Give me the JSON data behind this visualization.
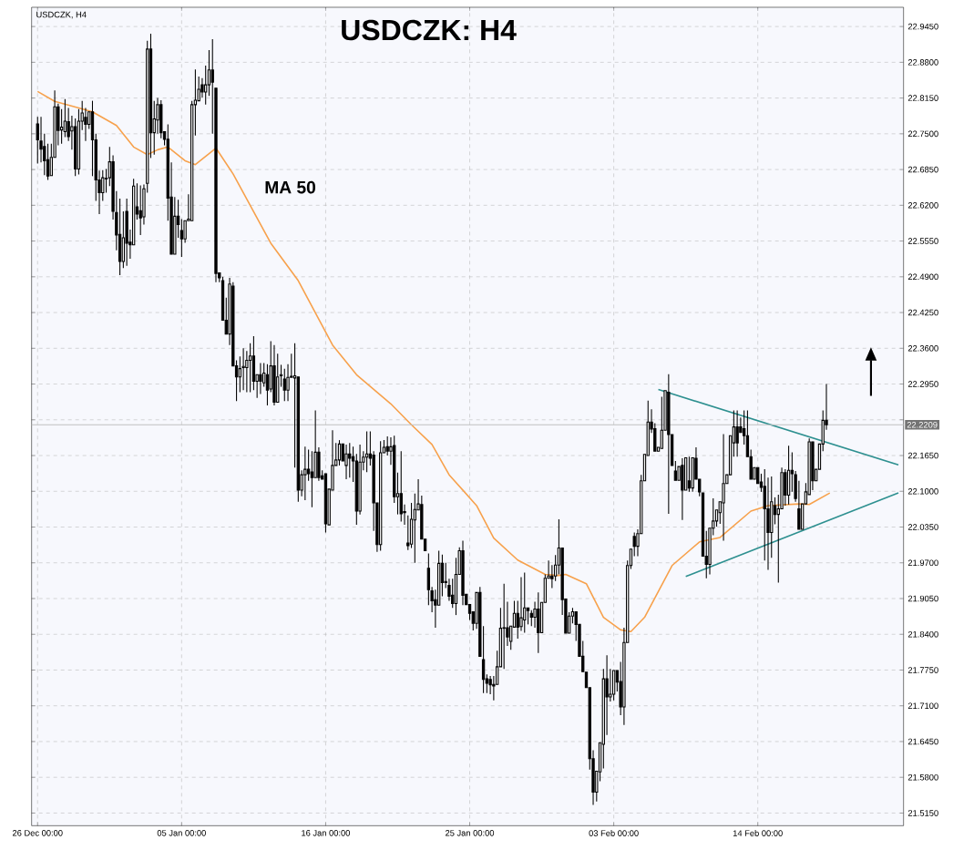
{
  "chart_data": {
    "type": "candlestick",
    "title": "USDCZK: H4",
    "subtitle": "USDCZK, H4",
    "color": "#000000",
    "ylim": [
      21.492,
      22.98
    ],
    "categories": [
      "26 Dec 00:00",
      null,
      null,
      null,
      null,
      null,
      null,
      null,
      null,
      null,
      null,
      null,
      null,
      null,
      null,
      null,
      null,
      null,
      null,
      null,
      null,
      null,
      null,
      null,
      null,
      null,
      null,
      null,
      null,
      null,
      null,
      null,
      null,
      null,
      null,
      null,
      null,
      null,
      null,
      null,
      null,
      null,
      "05 Jan 00:00",
      null,
      null,
      null,
      null,
      null,
      null,
      null,
      null,
      null,
      null,
      null,
      null,
      null,
      null,
      null,
      null,
      null,
      null,
      null,
      null,
      null,
      null,
      null,
      null,
      null,
      null,
      null,
      null,
      null,
      null,
      null,
      null,
      null,
      null,
      null,
      null,
      null,
      null,
      null,
      null,
      null,
      "16 Jan 00:00",
      null,
      null,
      null,
      null,
      null,
      null,
      null,
      null,
      null,
      null,
      null,
      null,
      null,
      null,
      null,
      null,
      null,
      null,
      null,
      null,
      null,
      null,
      null,
      null,
      null,
      null,
      null,
      null,
      null,
      null,
      null,
      null,
      null,
      null,
      null,
      null,
      null,
      null,
      null,
      null,
      null,
      "25 Jan 00:00",
      null,
      null,
      null,
      null,
      null,
      null,
      null,
      null,
      null,
      null,
      null,
      null,
      null,
      null,
      null,
      null,
      null,
      null,
      null,
      null,
      null,
      null,
      null,
      null,
      null,
      null,
      null,
      null,
      null,
      null,
      null,
      null,
      null,
      null,
      null,
      null,
      null,
      null,
      null,
      null,
      null,
      "03 Feb 00:00",
      null,
      null,
      null,
      null,
      null,
      null,
      null,
      null,
      null,
      null,
      null,
      null,
      null,
      null,
      null,
      null,
      null,
      null,
      null,
      null,
      null,
      null,
      null,
      null,
      null,
      null,
      null,
      null,
      null,
      null,
      null,
      null,
      null,
      null,
      null,
      null,
      null,
      null,
      null,
      null,
      null,
      "14 Feb 00:00",
      null,
      null,
      null,
      null,
      null,
      null,
      null,
      null,
      null,
      null,
      null,
      null,
      null,
      null,
      null,
      null,
      null,
      null,
      null,
      null,
      null,
      null,
      null,
      null,
      null,
      null,
      null,
      null,
      null,
      null,
      null,
      null,
      null,
      null,
      null,
      null,
      null,
      null,
      null,
      null,
      null,
      null
    ],
    "yticks": [
      {
        "value": 22.945,
        "label": "22.9450"
      },
      {
        "value": 22.88,
        "label": "22.8800"
      },
      {
        "value": 22.815,
        "label": "22.8150"
      },
      {
        "value": 22.75,
        "label": "22.7500"
      },
      {
        "value": 22.685,
        "label": "22.6850"
      },
      {
        "value": 22.62,
        "label": "22.6200"
      },
      {
        "value": 22.555,
        "label": "22.5550"
      },
      {
        "value": 22.49,
        "label": "22.4900"
      },
      {
        "value": 22.425,
        "label": "22.4250"
      },
      {
        "value": 22.36,
        "label": "22.3600"
      },
      {
        "value": 22.295,
        "label": "22.2950"
      },
      {
        "value": 22.23,
        "label": null
      },
      {
        "value": 22.165,
        "label": "22.1650"
      },
      {
        "value": 22.1,
        "label": "22.1000"
      },
      {
        "value": 22.035,
        "label": "22.0350"
      },
      {
        "value": 21.97,
        "label": "21.9700"
      },
      {
        "value": 21.905,
        "label": "21.9050"
      },
      {
        "value": 21.84,
        "label": "21.8400"
      },
      {
        "value": 21.775,
        "label": "21.7750"
      },
      {
        "value": 21.71,
        "label": "21.7100"
      },
      {
        "value": 21.645,
        "label": "21.6450"
      },
      {
        "value": 21.58,
        "label": "21.5800"
      },
      {
        "value": 21.515,
        "label": "21.5150"
      }
    ],
    "grid": true,
    "ref_lines": [
      {
        "axis": "y",
        "value": 22.2209,
        "label": "22.2209",
        "color": "#c0c0c0"
      }
    ],
    "ohlc": [
      [
        22.768,
        22.781,
        22.696,
        22.739
      ],
      [
        22.737,
        22.781,
        22.698,
        22.722
      ],
      [
        22.727,
        22.75,
        22.675,
        22.701
      ],
      [
        22.703,
        22.732,
        22.666,
        22.673
      ],
      [
        22.674,
        22.732,
        22.67,
        22.707
      ],
      [
        22.707,
        22.829,
        22.706,
        22.799
      ],
      [
        22.799,
        22.805,
        22.729,
        22.756
      ],
      [
        22.757,
        22.795,
        22.732,
        22.762
      ],
      [
        22.754,
        22.813,
        22.744,
        22.773
      ],
      [
        22.772,
        22.797,
        22.737,
        22.745
      ],
      [
        22.755,
        22.783,
        22.721,
        22.763
      ],
      [
        22.763,
        22.778,
        22.673,
        22.686
      ],
      [
        22.686,
        22.795,
        22.676,
        22.773
      ],
      [
        22.773,
        22.81,
        22.757,
        22.788
      ],
      [
        22.78,
        22.797,
        22.737,
        22.767
      ],
      [
        22.767,
        22.795,
        22.759,
        22.79
      ],
      [
        22.79,
        22.81,
        22.673,
        22.739
      ],
      [
        22.739,
        22.75,
        22.628,
        22.666
      ],
      [
        22.666,
        22.683,
        22.604,
        22.643
      ],
      [
        22.643,
        22.684,
        22.628,
        22.67
      ],
      [
        22.669,
        22.686,
        22.643,
        22.668
      ],
      [
        22.67,
        22.726,
        22.655,
        22.699
      ],
      [
        22.699,
        22.711,
        22.594,
        22.609
      ],
      [
        22.607,
        22.646,
        22.538,
        22.566
      ],
      [
        22.567,
        22.632,
        22.493,
        22.518
      ],
      [
        22.518,
        22.609,
        22.506,
        22.561
      ],
      [
        22.609,
        22.632,
        22.51,
        22.551
      ],
      [
        22.553,
        22.576,
        22.523,
        22.548
      ],
      [
        22.548,
        22.668,
        22.547,
        22.655
      ],
      [
        22.617,
        22.66,
        22.594,
        22.604
      ],
      [
        22.61,
        22.656,
        22.566,
        22.597
      ],
      [
        22.599,
        22.658,
        22.585,
        22.65
      ],
      [
        22.66,
        22.919,
        22.643,
        22.904
      ],
      [
        22.904,
        22.932,
        22.706,
        22.752
      ],
      [
        22.752,
        22.81,
        22.712,
        22.777
      ],
      [
        22.775,
        22.815,
        22.75,
        22.803
      ],
      [
        22.803,
        22.811,
        22.742,
        22.752
      ],
      [
        22.754,
        22.757,
        22.729,
        22.74
      ],
      [
        22.74,
        22.767,
        22.592,
        22.633
      ],
      [
        22.635,
        22.698,
        22.528,
        22.531
      ],
      [
        22.531,
        22.635,
        22.531,
        22.6
      ],
      [
        22.6,
        22.63,
        22.561,
        22.585
      ],
      [
        22.574,
        22.595,
        22.526,
        22.559
      ],
      [
        22.559,
        22.594,
        22.552,
        22.592
      ],
      [
        22.592,
        22.64,
        22.588,
        22.595
      ],
      [
        22.592,
        22.81,
        22.589,
        22.803
      ],
      [
        22.803,
        22.867,
        22.747,
        22.811
      ],
      [
        22.81,
        22.854,
        22.806,
        22.831
      ],
      [
        22.839,
        22.851,
        22.816,
        22.826
      ],
      [
        22.826,
        22.874,
        22.803,
        22.839
      ],
      [
        22.839,
        22.902,
        22.819,
        22.866
      ],
      [
        22.866,
        22.922,
        22.75,
        22.844
      ],
      [
        22.833,
        22.833,
        22.48,
        22.496
      ],
      [
        22.497,
        22.497,
        22.48,
        22.488
      ],
      [
        22.483,
        22.49,
        22.411,
        22.411
      ],
      [
        22.411,
        22.452,
        22.383,
        22.386
      ],
      [
        22.386,
        22.488,
        22.366,
        22.477
      ],
      [
        22.473,
        22.48,
        22.328,
        22.328
      ],
      [
        22.328,
        22.338,
        22.264,
        22.308
      ],
      [
        22.308,
        22.345,
        22.28,
        22.323
      ],
      [
        22.325,
        22.36,
        22.284,
        22.327
      ],
      [
        22.325,
        22.355,
        22.28,
        22.338
      ],
      [
        22.338,
        22.369,
        22.28,
        22.346
      ],
      [
        22.346,
        22.382,
        22.284,
        22.3
      ],
      [
        22.3,
        22.317,
        22.27,
        22.312
      ],
      [
        22.312,
        22.333,
        22.277,
        22.3
      ],
      [
        22.297,
        22.333,
        22.29,
        22.315
      ],
      [
        22.312,
        22.331,
        22.256,
        22.284
      ],
      [
        22.286,
        22.373,
        22.28,
        22.328
      ],
      [
        22.328,
        22.366,
        22.256,
        22.262
      ],
      [
        22.262,
        22.35,
        22.259,
        22.308
      ],
      [
        22.31,
        22.33,
        22.29,
        22.312
      ],
      [
        22.304,
        22.323,
        22.264,
        22.284
      ],
      [
        22.284,
        22.331,
        22.264,
        22.307
      ],
      [
        22.307,
        22.35,
        22.304,
        22.309
      ],
      [
        22.306,
        22.369,
        22.143,
        22.31
      ],
      [
        22.308,
        22.312,
        22.081,
        22.102
      ],
      [
        22.102,
        22.138,
        22.091,
        22.13
      ],
      [
        22.13,
        22.181,
        22.084,
        22.14
      ],
      [
        22.14,
        22.176,
        22.119,
        22.132
      ],
      [
        22.135,
        22.173,
        22.071,
        22.125
      ],
      [
        22.125,
        22.247,
        22.125,
        22.171
      ],
      [
        22.171,
        22.18,
        22.119,
        22.125
      ],
      [
        22.128,
        22.138,
        22.119,
        22.122
      ],
      [
        22.132,
        22.132,
        22.025,
        22.041
      ],
      [
        22.039,
        22.106,
        22.036,
        22.104
      ],
      [
        22.102,
        22.211,
        22.097,
        22.147
      ],
      [
        22.147,
        22.188,
        22.143,
        22.157
      ],
      [
        22.157,
        22.193,
        22.147,
        22.186
      ],
      [
        22.186,
        22.188,
        22.152,
        22.155
      ],
      [
        22.147,
        22.185,
        22.122,
        22.168
      ],
      [
        22.168,
        22.188,
        22.125,
        22.16
      ],
      [
        22.163,
        22.181,
        22.117,
        22.155
      ],
      [
        22.155,
        22.168,
        22.039,
        22.064
      ],
      [
        22.064,
        22.185,
        22.058,
        22.153
      ],
      [
        22.153,
        22.173,
        22.138,
        22.162
      ],
      [
        22.162,
        22.209,
        22.135,
        22.168
      ],
      [
        22.168,
        22.209,
        22.147,
        22.16
      ],
      [
        22.166,
        22.173,
        22.028,
        22.079
      ],
      [
        22.079,
        22.079,
        21.99,
        22.003
      ],
      [
        22.003,
        22.191,
        21.992,
        22.17
      ],
      [
        22.17,
        22.193,
        22.168,
        22.18
      ],
      [
        22.181,
        22.2,
        22.165,
        22.173
      ],
      [
        22.173,
        22.198,
        22.148,
        22.181
      ],
      [
        22.183,
        22.201,
        22.079,
        22.09
      ],
      [
        22.09,
        22.134,
        22.058,
        22.096
      ],
      [
        22.096,
        22.173,
        22.045,
        22.059
      ],
      [
        22.063,
        22.076,
        22.039,
        22.061
      ],
      [
        22.006,
        22.056,
        21.993,
        22.001
      ],
      [
        22.004,
        22.079,
        21.997,
        22.049
      ],
      [
        22.048,
        22.096,
        21.97,
        22.067
      ],
      [
        22.066,
        22.122,
        22.063,
        22.077
      ],
      [
        22.076,
        22.092,
        22.008,
        22.013
      ],
      [
        22.013,
        22.015,
        21.989,
        21.992
      ],
      [
        21.96,
        21.987,
        21.893,
        21.921
      ],
      [
        21.919,
        21.926,
        21.88,
        21.901
      ],
      [
        21.903,
        21.921,
        21.852,
        21.893
      ],
      [
        21.893,
        21.992,
        21.893,
        21.969
      ],
      [
        21.969,
        21.985,
        21.909,
        21.934
      ],
      [
        21.936,
        21.97,
        21.924,
        21.934
      ],
      [
        21.929,
        21.941,
        21.901,
        21.909
      ],
      [
        21.911,
        21.941,
        21.888,
        21.896
      ],
      [
        21.896,
        21.979,
        21.875,
        21.949
      ],
      [
        21.949,
        21.998,
        21.946,
        21.992
      ],
      [
        21.992,
        22.01,
        21.893,
        21.911
      ],
      [
        21.913,
        21.916,
        21.891,
        21.894
      ],
      [
        21.894,
        21.896,
        21.866,
        21.878
      ],
      [
        21.881,
        21.884,
        21.847,
        21.86
      ],
      [
        21.86,
        21.921,
        21.85,
        21.916
      ],
      [
        21.916,
        21.926,
        21.798,
        21.8
      ],
      [
        21.794,
        21.855,
        21.733,
        21.758
      ],
      [
        21.759,
        21.767,
        21.733,
        21.751
      ],
      [
        21.758,
        21.764,
        21.731,
        21.748
      ],
      [
        21.749,
        21.764,
        21.72,
        21.746
      ],
      [
        21.749,
        21.81,
        21.747,
        21.781
      ],
      [
        21.781,
        21.888,
        21.777,
        21.851
      ],
      [
        21.851,
        21.932,
        21.777,
        21.852
      ],
      [
        21.852,
        21.899,
        21.819,
        21.835
      ],
      [
        21.827,
        21.86,
        21.812,
        21.855
      ],
      [
        21.853,
        21.901,
        21.852,
        21.878
      ],
      [
        21.878,
        21.901,
        21.832,
        21.853
      ],
      [
        21.854,
        21.944,
        21.846,
        21.87
      ],
      [
        21.866,
        21.952,
        21.843,
        21.888
      ],
      [
        21.888,
        21.893,
        21.858,
        21.883
      ],
      [
        21.878,
        21.884,
        21.855,
        21.871
      ],
      [
        21.871,
        21.899,
        21.852,
        21.886
      ],
      [
        21.886,
        21.916,
        21.806,
        21.843
      ],
      [
        21.843,
        21.901,
        21.84,
        21.898
      ],
      [
        21.898,
        21.949,
        21.896,
        21.942
      ],
      [
        21.942,
        21.974,
        21.942,
        21.946
      ],
      [
        21.946,
        21.966,
        21.924,
        21.941
      ],
      [
        21.946,
        21.984,
        21.937,
        21.966
      ],
      [
        21.966,
        22.049,
        21.949,
        21.997
      ],
      [
        21.997,
        21.997,
        21.875,
        21.903
      ],
      [
        21.904,
        21.904,
        21.838,
        21.842
      ],
      [
        21.842,
        21.88,
        21.838,
        21.873
      ],
      [
        21.873,
        21.888,
        21.86,
        21.881
      ],
      [
        21.881,
        21.884,
        21.828,
        21.858
      ],
      [
        21.858,
        21.858,
        21.797,
        21.8
      ],
      [
        21.8,
        21.828,
        21.769,
        21.772
      ],
      [
        21.771,
        21.773,
        21.743,
        21.743
      ],
      [
        21.743,
        21.743,
        21.594,
        21.614
      ],
      [
        21.614,
        21.629,
        21.53,
        21.553
      ],
      [
        21.553,
        21.594,
        21.536,
        21.591
      ],
      [
        21.59,
        21.647,
        21.573,
        21.643
      ],
      [
        21.64,
        21.777,
        21.596,
        21.759
      ],
      [
        21.759,
        21.802,
        21.657,
        21.726
      ],
      [
        21.726,
        21.777,
        21.718,
        21.731
      ],
      [
        21.731,
        21.779,
        21.72,
        21.774
      ],
      [
        21.774,
        21.777,
        21.736,
        21.753
      ],
      [
        21.754,
        21.79,
        21.693,
        21.708
      ],
      [
        21.708,
        21.852,
        21.675,
        21.825
      ],
      [
        21.825,
        21.974,
        21.825,
        21.965
      ],
      [
        21.965,
        21.995,
        21.959,
        21.995
      ],
      [
        22.018,
        22.025,
        21.982,
        22.0
      ],
      [
        22.0,
        22.031,
        21.982,
        22.023
      ],
      [
        22.023,
        22.13,
        22.02,
        22.119
      ],
      [
        22.119,
        22.171,
        22.117,
        22.167
      ],
      [
        22.165,
        22.265,
        22.163,
        22.226
      ],
      [
        22.226,
        22.249,
        22.206,
        22.213
      ],
      [
        22.214,
        22.224,
        22.168,
        22.173
      ],
      [
        22.173,
        22.181,
        22.17,
        22.18
      ],
      [
        22.178,
        22.272,
        22.176,
        22.211
      ],
      [
        22.211,
        22.285,
        22.209,
        22.283
      ],
      [
        22.28,
        22.313,
        22.059,
        22.203
      ],
      [
        22.203,
        22.204,
        22.145,
        22.147
      ],
      [
        22.137,
        22.155,
        22.119,
        22.12
      ],
      [
        22.12,
        22.148,
        22.12,
        22.145
      ],
      [
        22.147,
        22.16,
        22.048,
        22.102
      ],
      [
        22.102,
        22.163,
        22.1,
        22.161
      ],
      [
        22.119,
        22.163,
        22.099,
        22.106
      ],
      [
        22.106,
        22.165,
        22.099,
        22.161
      ],
      [
        22.16,
        22.18,
        22.119,
        22.122
      ],
      [
        22.122,
        22.125,
        22.091,
        22.099
      ],
      [
        22.097,
        22.097,
        21.982,
        21.982
      ],
      [
        21.982,
        22.028,
        21.942,
        21.967
      ],
      [
        21.967,
        22.035,
        21.949,
        22.033
      ],
      [
        22.033,
        22.087,
        22.02,
        22.046
      ],
      [
        22.046,
        22.069,
        22.036,
        22.066
      ],
      [
        22.061,
        22.082,
        22.041,
        22.081
      ],
      [
        22.079,
        22.204,
        22.01,
        22.114
      ],
      [
        22.114,
        22.132,
        22.112,
        22.13
      ],
      [
        22.13,
        22.204,
        22.127,
        22.201
      ],
      [
        22.188,
        22.247,
        22.163,
        22.217
      ],
      [
        22.217,
        22.247,
        22.163,
        22.188
      ],
      [
        22.217,
        22.234,
        22.203,
        22.207
      ],
      [
        22.214,
        22.247,
        22.185,
        22.201
      ],
      [
        22.201,
        22.247,
        22.16,
        22.163
      ],
      [
        22.163,
        22.176,
        22.122,
        22.122
      ],
      [
        22.122,
        22.147,
        22.122,
        22.143
      ],
      [
        22.143,
        22.147,
        22.114,
        22.114
      ],
      [
        22.117,
        22.132,
        22.099,
        22.107
      ],
      [
        22.109,
        22.14,
        21.974,
        22.068
      ],
      [
        22.068,
        22.125,
        21.957,
        22.025
      ],
      [
        22.025,
        22.127,
        21.979,
        22.081
      ],
      [
        22.074,
        22.089,
        22.04,
        22.058
      ],
      [
        22.058,
        22.094,
        21.934,
        22.068
      ],
      [
        22.068,
        22.143,
        22.064,
        22.134
      ],
      [
        22.134,
        22.14,
        22.074,
        22.093
      ],
      [
        22.093,
        22.183,
        22.076,
        22.138
      ],
      [
        22.138,
        22.171,
        22.099,
        22.132
      ],
      [
        22.13,
        22.137,
        22.081,
        22.087
      ],
      [
        22.068,
        22.119,
        22.028,
        22.031
      ],
      [
        22.031,
        22.082,
        22.028,
        22.077
      ],
      [
        22.077,
        22.115,
        22.074,
        22.099
      ],
      [
        22.094,
        22.196,
        22.091,
        22.19
      ],
      [
        22.19,
        22.193,
        22.102,
        22.119
      ],
      [
        22.119,
        22.143,
        22.115,
        22.14
      ],
      [
        22.14,
        22.19,
        22.138,
        22.186
      ],
      [
        22.186,
        22.247,
        22.173,
        22.229
      ],
      [
        22.229,
        22.295,
        22.212,
        22.221
      ],
      null,
      null,
      null,
      null,
      null,
      null,
      null,
      null,
      null,
      null,
      null,
      null,
      null,
      null,
      null,
      null,
      null,
      null,
      null,
      null,
      null,
      null
    ],
    "series": [
      {
        "type": "line",
        "name": "MA 50",
        "color": "#f7a14c",
        "values": [
          22.827,
          null,
          null,
          null,
          null,
          22.809,
          null,
          null,
          null,
          null,
          null,
          null,
          22.797,
          null,
          null,
          null,
          22.79,
          null,
          null,
          null,
          null,
          null,
          null,
          22.765,
          null,
          null,
          null,
          null,
          22.726,
          null,
          null,
          null,
          22.712,
          null,
          null,
          22.721,
          null,
          null,
          22.726,
          null,
          null,
          null,
          null,
          22.701,
          null,
          null,
          22.694,
          null,
          null,
          null,
          null,
          null,
          22.724,
          null,
          null,
          null,
          null,
          22.677,
          null,
          null,
          null,
          null,
          null,
          null,
          null,
          null,
          null,
          null,
          22.551,
          null,
          null,
          null,
          null,
          null,
          null,
          null,
          22.483,
          null,
          null,
          null,
          null,
          null,
          null,
          null,
          null,
          null,
          22.366,
          null,
          null,
          null,
          null,
          null,
          null,
          22.312,
          null,
          null,
          null,
          null,
          null,
          null,
          null,
          null,
          null,
          22.259,
          null,
          null,
          null,
          null,
          null,
          22.221,
          null,
          null,
          null,
          null,
          null,
          22.185,
          null,
          null,
          null,
          null,
          22.13,
          null,
          null,
          null,
          null,
          null,
          null,
          null,
          22.074,
          null,
          null,
          null,
          null,
          22.015,
          null,
          null,
          null,
          null,
          null,
          null,
          21.975,
          null,
          null,
          null,
          null,
          null,
          null,
          null,
          21.949,
          null,
          null,
          null,
          21.947,
          null,
          21.949,
          null,
          null,
          null,
          null,
          null,
          21.932,
          null,
          null,
          null,
          null,
          21.871,
          null,
          null,
          null,
          null,
          21.848,
          null,
          null,
          21.845,
          null,
          null,
          null,
          21.871,
          null,
          null,
          null,
          null,
          null,
          null,
          null,
          21.965,
          null,
          null,
          null,
          null,
          null,
          null,
          null,
          22.008,
          null,
          null,
          null,
          null,
          null,
          22.016,
          null,
          null,
          null,
          null,
          null,
          null,
          null,
          null,
          22.064,
          null,
          null,
          null,
          null,
          22.074,
          null,
          null,
          null,
          null,
          null,
          null,
          null,
          null,
          22.077,
          null,
          null,
          22.076,
          null,
          null,
          null,
          null,
          null,
          22.097,
          null,
          null,
          null,
          null,
          null,
          null,
          null,
          null,
          null,
          null,
          null,
          null,
          null,
          null,
          null,
          null,
          null,
          null,
          null,
          null,
          null
        ]
      },
      {
        "type": "line",
        "color": "#2e9090",
        "values": [
          null,
          null,
          null,
          null,
          null,
          null,
          null,
          null,
          null,
          null,
          null,
          null,
          null,
          null,
          null,
          null,
          null,
          null,
          null,
          null,
          null,
          null,
          null,
          null,
          null,
          null,
          null,
          null,
          null,
          null,
          null,
          null,
          null,
          null,
          null,
          null,
          null,
          null,
          null,
          null,
          null,
          null,
          null,
          null,
          null,
          null,
          null,
          null,
          null,
          null,
          null,
          null,
          null,
          null,
          null,
          null,
          null,
          null,
          null,
          null,
          null,
          null,
          null,
          null,
          null,
          null,
          null,
          null,
          null,
          null,
          null,
          null,
          null,
          null,
          null,
          null,
          null,
          null,
          null,
          null,
          null,
          null,
          null,
          null,
          null,
          null,
          null,
          null,
          null,
          null,
          null,
          null,
          null,
          null,
          null,
          null,
          null,
          null,
          null,
          null,
          null,
          null,
          null,
          null,
          null,
          null,
          null,
          null,
          null,
          null,
          null,
          null,
          null,
          null,
          null,
          null,
          null,
          null,
          null,
          null,
          null,
          null,
          null,
          null,
          null,
          null,
          null,
          null,
          null,
          null,
          null,
          null,
          null,
          null,
          null,
          null,
          null,
          null,
          null,
          null,
          null,
          null,
          null,
          null,
          null,
          null,
          null,
          null,
          null,
          null,
          null,
          null,
          null,
          null,
          null,
          null,
          null,
          null,
          null,
          null,
          null,
          null,
          null,
          null,
          null,
          null,
          null,
          null,
          null,
          null,
          null,
          null,
          null,
          null,
          null,
          null,
          null,
          null,
          null,
          null,
          null,
          22.285,
          null,
          null,
          null,
          null,
          null,
          null,
          null,
          null,
          null,
          null,
          null,
          null,
          null,
          null,
          null,
          null,
          null,
          null,
          null,
          null,
          null,
          null,
          null,
          null,
          null,
          null,
          null,
          null,
          null,
          null,
          null,
          null,
          null,
          null,
          null,
          null,
          null,
          null,
          null,
          null,
          null,
          null,
          null,
          null,
          null,
          null,
          null,
          null,
          null,
          null,
          null,
          null,
          null,
          null,
          null,
          null,
          null,
          null,
          null,
          null,
          null,
          null,
          null,
          null,
          null,
          null,
          null,
          null,
          null,
          22.148,
          null
        ]
      },
      {
        "type": "line",
        "color": "#2e9090",
        "values": [
          null,
          null,
          null,
          null,
          null,
          null,
          null,
          null,
          null,
          null,
          null,
          null,
          null,
          null,
          null,
          null,
          null,
          null,
          null,
          null,
          null,
          null,
          null,
          null,
          null,
          null,
          null,
          null,
          null,
          null,
          null,
          null,
          null,
          null,
          null,
          null,
          null,
          null,
          null,
          null,
          null,
          null,
          null,
          null,
          null,
          null,
          null,
          null,
          null,
          null,
          null,
          null,
          null,
          null,
          null,
          null,
          null,
          null,
          null,
          null,
          null,
          null,
          null,
          null,
          null,
          null,
          null,
          null,
          null,
          null,
          null,
          null,
          null,
          null,
          null,
          null,
          null,
          null,
          null,
          null,
          null,
          null,
          null,
          null,
          null,
          null,
          null,
          null,
          null,
          null,
          null,
          null,
          null,
          null,
          null,
          null,
          null,
          null,
          null,
          null,
          null,
          null,
          null,
          null,
          null,
          null,
          null,
          null,
          null,
          null,
          null,
          null,
          null,
          null,
          null,
          null,
          null,
          null,
          null,
          null,
          null,
          null,
          null,
          null,
          null,
          null,
          null,
          null,
          null,
          null,
          null,
          null,
          null,
          null,
          null,
          null,
          null,
          null,
          null,
          null,
          null,
          null,
          null,
          null,
          null,
          null,
          null,
          null,
          null,
          null,
          null,
          null,
          null,
          null,
          null,
          null,
          null,
          null,
          null,
          null,
          null,
          null,
          null,
          null,
          null,
          null,
          null,
          null,
          null,
          null,
          null,
          null,
          null,
          null,
          null,
          null,
          null,
          null,
          null,
          null,
          null,
          null,
          null,
          null,
          null,
          null,
          null,
          null,
          null,
          21.945,
          null,
          null,
          null,
          null,
          null,
          null,
          null,
          null,
          null,
          null,
          null,
          null,
          null,
          null,
          null,
          null,
          null,
          null,
          null,
          null,
          null,
          null,
          null,
          null,
          null,
          null,
          null,
          null,
          null,
          null,
          null,
          null,
          null,
          null,
          null,
          null,
          null,
          null,
          null,
          null,
          null,
          null,
          null,
          null,
          null,
          null,
          null,
          null,
          null,
          null,
          null,
          null,
          null,
          null,
          null,
          null,
          null,
          null,
          null,
          null,
          null,
          22.097,
          null
        ]
      }
    ]
  }
}
